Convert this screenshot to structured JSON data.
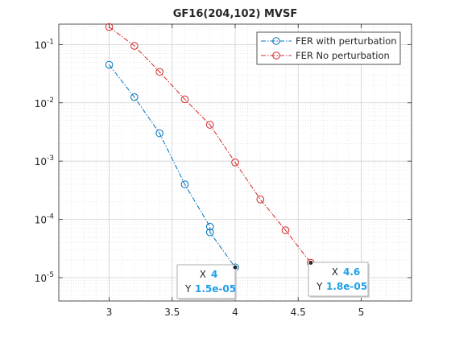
{
  "chart_data": {
    "type": "line",
    "title": "GF16(204,102) MVSF",
    "xlabel": "",
    "ylabel": "",
    "xlim": [
      2.6,
      5.4
    ],
    "ylim_log10": [
      -5.4,
      -0.65
    ],
    "y_scale": "log",
    "grid": "on (major and minor)",
    "x_ticks": [
      {
        "value": 3,
        "label": "3"
      },
      {
        "value": 3.5,
        "label": "3.5"
      },
      {
        "value": 4,
        "label": "4"
      },
      {
        "value": 4.5,
        "label": "4.5"
      },
      {
        "value": 5,
        "label": "5"
      }
    ],
    "y_ticks": [
      {
        "exp": -1,
        "base": "10",
        "sup": "-1"
      },
      {
        "exp": -2,
        "base": "10",
        "sup": "-2"
      },
      {
        "exp": -3,
        "base": "10",
        "sup": "-3"
      },
      {
        "exp": -4,
        "base": "10",
        "sup": "-4"
      },
      {
        "exp": -5,
        "base": "10",
        "sup": "-5"
      }
    ],
    "legend_position": "top-right",
    "series": [
      {
        "name": "FER with perturbation",
        "color": "#0072BD",
        "line_style": "dash-dot",
        "marker": "circle",
        "x": [
          3,
          3.2,
          3.4,
          3.6,
          3.8,
          3.8,
          4
        ],
        "y": [
          0.045,
          0.0125,
          0.003,
          0.0004,
          7.5e-05,
          6e-05,
          1.5e-05
        ]
      },
      {
        "name": "FER No perturbation",
        "color": "#D62728",
        "line_style": "dash-dot",
        "marker": "circle",
        "x": [
          3,
          3.2,
          3.4,
          3.6,
          3.8,
          4,
          4.2,
          4.4,
          4.6
        ],
        "y": [
          0.2,
          0.095,
          0.034,
          0.0115,
          0.0042,
          0.00095,
          0.00022,
          6.5e-05,
          1.8e-05
        ]
      }
    ],
    "datatips": [
      {
        "series": 0,
        "x": 4,
        "y": 1.5e-05,
        "x_label": "X",
        "x_text": "4",
        "y_label": "Y",
        "y_text": "1.5e-05"
      },
      {
        "series": 1,
        "x": 4.6,
        "y": 1.8e-05,
        "x_label": "X",
        "x_text": "4.6",
        "y_label": "Y",
        "y_text": "1.8e-05"
      }
    ],
    "datatip_value_color": "#1f9ee8"
  }
}
